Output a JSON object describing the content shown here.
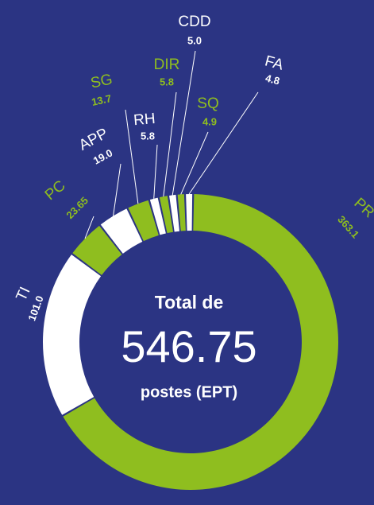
{
  "chart_data": {
    "type": "donut",
    "center_text": [
      "Total de",
      "postes (EPT)"
    ],
    "total": 546.75,
    "categories": [
      "PR",
      "TI",
      "PC",
      "APP",
      "SG",
      "RH",
      "DIR",
      "CDD",
      "SQ",
      "FA"
    ],
    "values": [
      363.1,
      101.0,
      23.65,
      19.0,
      13.7,
      5.8,
      5.8,
      5.0,
      4.9,
      4.8
    ],
    "value_labels": [
      "363.1",
      "101.0",
      "23.65",
      "19.0",
      "13.7",
      "5.8",
      "5.8",
      "5.0",
      "4.9",
      "4.8"
    ],
    "colors": [
      "#8fbe1f",
      "#ffffff",
      "#8fbe1f",
      "#ffffff",
      "#8fbe1f",
      "#ffffff",
      "#8fbe1f",
      "#ffffff",
      "#8fbe1f",
      "#ffffff"
    ]
  }
}
